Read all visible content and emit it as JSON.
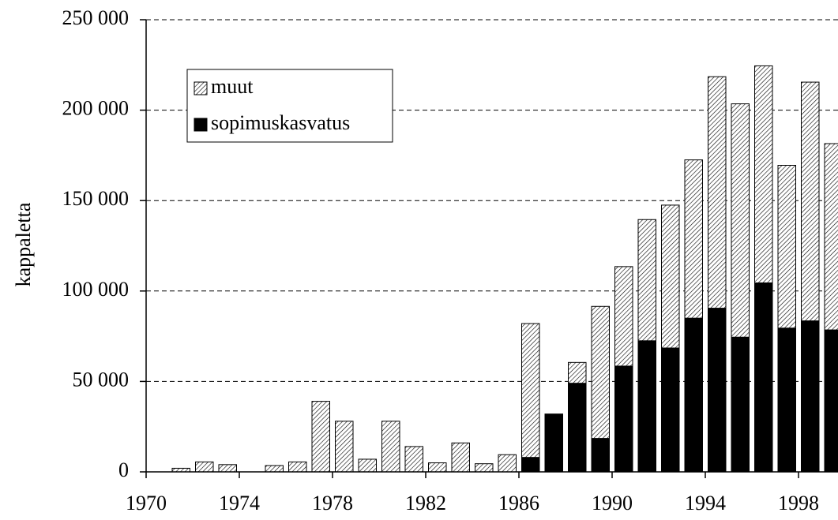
{
  "chart_data": {
    "type": "stacked_bar",
    "ylabel": "kappaletta",
    "categories": [
      "1970",
      null,
      null,
      null,
      "1974",
      null,
      null,
      null,
      "1978",
      null,
      null,
      null,
      "1982",
      null,
      null,
      null,
      "1986",
      null,
      null,
      null,
      "1990",
      null,
      null,
      null,
      "1994",
      null,
      null,
      null,
      "1998",
      null
    ],
    "series": [
      {
        "name": "sopimuskasvatus",
        "color": "#000000",
        "hatch": false,
        "values": [
          0,
          0,
          0,
          0,
          0,
          0,
          0,
          0,
          0,
          0,
          0,
          0,
          0,
          0,
          0,
          0,
          8000,
          32000,
          49000,
          18500,
          58500,
          72500,
          68500,
          85000,
          90500,
          74500,
          104500,
          79500,
          83500,
          78500
        ]
      },
      {
        "name": "muut",
        "color": "#ffffff",
        "hatch": true,
        "values": [
          0,
          2000,
          5500,
          4000,
          0,
          3500,
          5500,
          39000,
          28000,
          7000,
          28000,
          14000,
          5000,
          16000,
          4500,
          9500,
          74000,
          0,
          11500,
          73000,
          55000,
          67000,
          79000,
          87500,
          128000,
          129000,
          120000,
          90000,
          132000,
          103000
        ]
      }
    ],
    "ylim": [
      0,
      250000
    ],
    "yticks": [
      0,
      {
        "value": 50000,
        "label": "50 000"
      },
      {
        "value": 100000,
        "label": "100 000"
      },
      {
        "value": 150000,
        "label": "150 000"
      },
      {
        "value": 200000,
        "label": "200 000"
      },
      {
        "value": 250000,
        "label": "250 000"
      }
    ],
    "grid": true,
    "legend": "upper left"
  }
}
